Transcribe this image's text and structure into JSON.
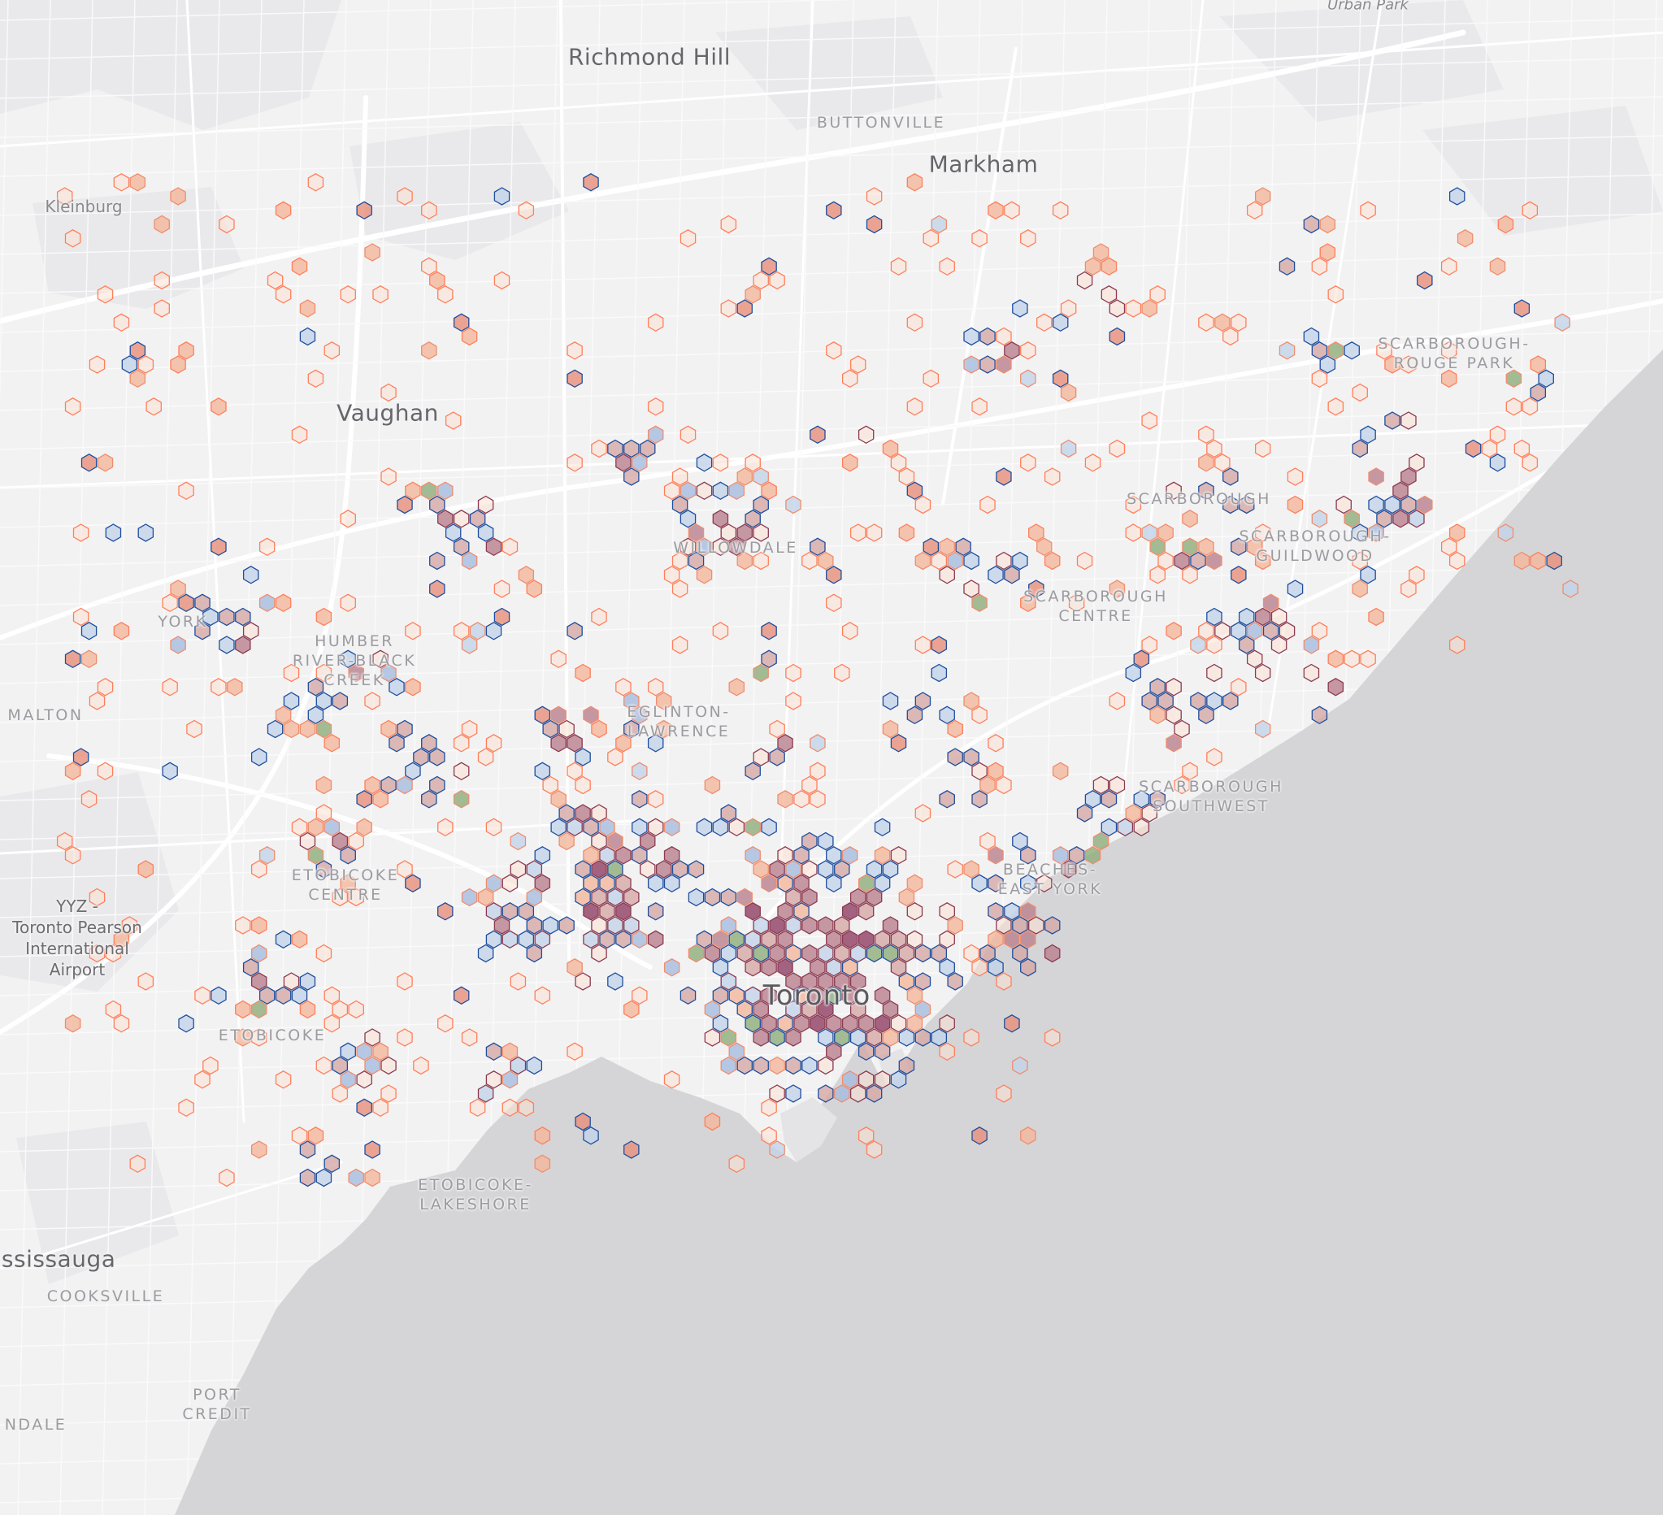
{
  "map": {
    "land_color": "#f2f2f3",
    "water_color": "#d5d5d7",
    "road_color": "#ffffff",
    "hex_palette": [
      "#fbe2d2",
      "#f4b69b",
      "#e78e7a",
      "#d4a7a6",
      "#b97f8d",
      "#8f3d63",
      "#c2d3ea",
      "#a6bbe0",
      "#8dad7a"
    ],
    "hex_stroke_palette": [
      "#ee8e6e",
      "#ff7f5b",
      "#1f4e9c",
      "#8b3a50"
    ]
  },
  "labels": {
    "richmond_hill": "Richmond Hill",
    "buttonville": "BUTTONVILLE",
    "markham": "Markham",
    "kleinburg": "Kleinburg",
    "vaughan": "Vaughan",
    "malton": "MALTON",
    "yyz_line1": "YYZ -",
    "yyz_line2": "Toronto Pearson",
    "yyz_line3": "International",
    "yyz_line4": "Airport",
    "toronto": "Toronto",
    "mississauga": "ississauga",
    "cooksville": "COOKSVILLE",
    "port_line1": "PORT",
    "port_line2": "CREDIT",
    "ndale": "NDALE",
    "etobicoke": "ETOBICOKE",
    "etobicoke_centre_1": "ETOBICOKE",
    "etobicoke_centre_2": "CENTRE",
    "etobicoke_lake_1": "ETOBICOKE-",
    "etobicoke_lake_2": "LAKESHORE",
    "humber_1": "HUMBER",
    "humber_2": "RIVER-BLACK",
    "humber_3": "CREEK",
    "york_1": "YORK",
    "eglinton_1": "EGLINTON-",
    "eglinton_2": "LAWRENCE",
    "willowdale": "WILLOWDALE",
    "scarborough_agincourt": "SCARBOROUGH",
    "scarborough_centre_1": "SCARBOROUGH",
    "scarborough_centre_2": "CENTRE",
    "scarborough_guildwood_1": "SCARBOROUGH-",
    "scarborough_guildwood_2": "GUILDWOOD",
    "scarborough_rouge_1": "SCARBOROUGH-",
    "scarborough_rouge_2": "ROUGE PARK",
    "scarborough_sw_1": "SCARBOROUGH",
    "scarborough_sw_2": "SOUTHWEST",
    "beaches_1": "BEACHES-",
    "beaches_2": "EAST YORK",
    "urban_park": "Urban Park"
  }
}
